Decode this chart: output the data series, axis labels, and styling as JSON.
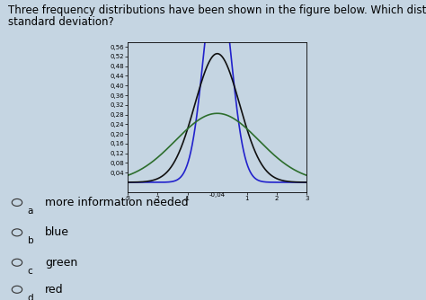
{
  "title_line1": "Three frequency distributions have been shown in the figure below. Which distribution has the smallest",
  "title_line2": "standard deviation?",
  "distributions": [
    {
      "color": "#2222cc",
      "std": 0.45,
      "mean": 0,
      "label": "blue"
    },
    {
      "color": "#111111",
      "std": 0.75,
      "mean": 0,
      "label": "black"
    },
    {
      "color": "#2d6e2d",
      "std": 1.4,
      "mean": 0,
      "label": "green"
    }
  ],
  "xlim": [
    -3,
    3
  ],
  "ylim": [
    -0.04,
    0.58
  ],
  "yticks": [
    0.04,
    0.08,
    0.12,
    0.16,
    0.2,
    0.24,
    0.28,
    0.32,
    0.36,
    0.4,
    0.44,
    0.48,
    0.52,
    0.56
  ],
  "xticks": [
    -3,
    -2,
    -1,
    1,
    2,
    3
  ],
  "options": [
    {
      "letter": "a",
      "text": "more information needed"
    },
    {
      "letter": "b",
      "text": "blue"
    },
    {
      "letter": "c",
      "text": "green"
    },
    {
      "letter": "d",
      "text": "red"
    }
  ],
  "question_fontsize": 8.5,
  "option_fontsize": 9,
  "tick_fontsize": 5,
  "fig_bg_color": "#c5d5e2"
}
